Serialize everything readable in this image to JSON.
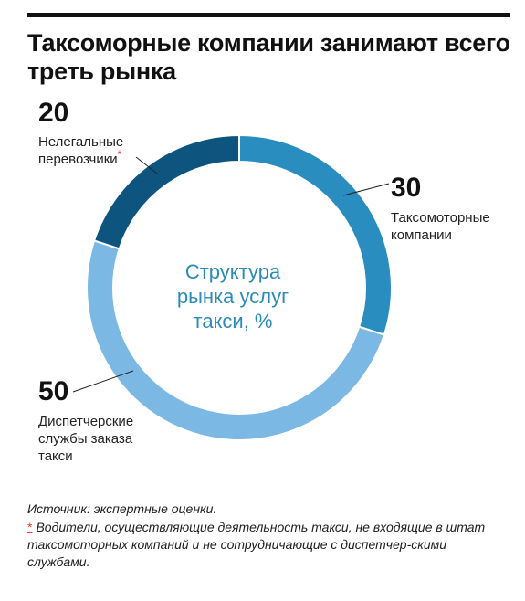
{
  "title": "Таксоморные компании занимают всего треть рынка",
  "chart_data": {
    "type": "pie",
    "style": "donut",
    "center_label": "Структура\nрынка услуг\nтакси, %",
    "slices": [
      {
        "label": "Таксомоторные\nкомпании",
        "value": 30,
        "color": "#2a8dc0"
      },
      {
        "label": "Диспетчерские\nслужбы заказа\nтакси",
        "value": 50,
        "color": "#7bb9e4"
      },
      {
        "label": "Нелегальные\nперевозчики",
        "value": 20,
        "color": "#0d557e",
        "marker": "*"
      }
    ]
  },
  "source": "Источник: экспертные оценки.",
  "footnote": {
    "marker": "*",
    "text": "Водители, осуществляющие деятельность такси, не входящие в штат таксомоторных компаний и не сотрудничающие с диспетчер-скими службами."
  }
}
